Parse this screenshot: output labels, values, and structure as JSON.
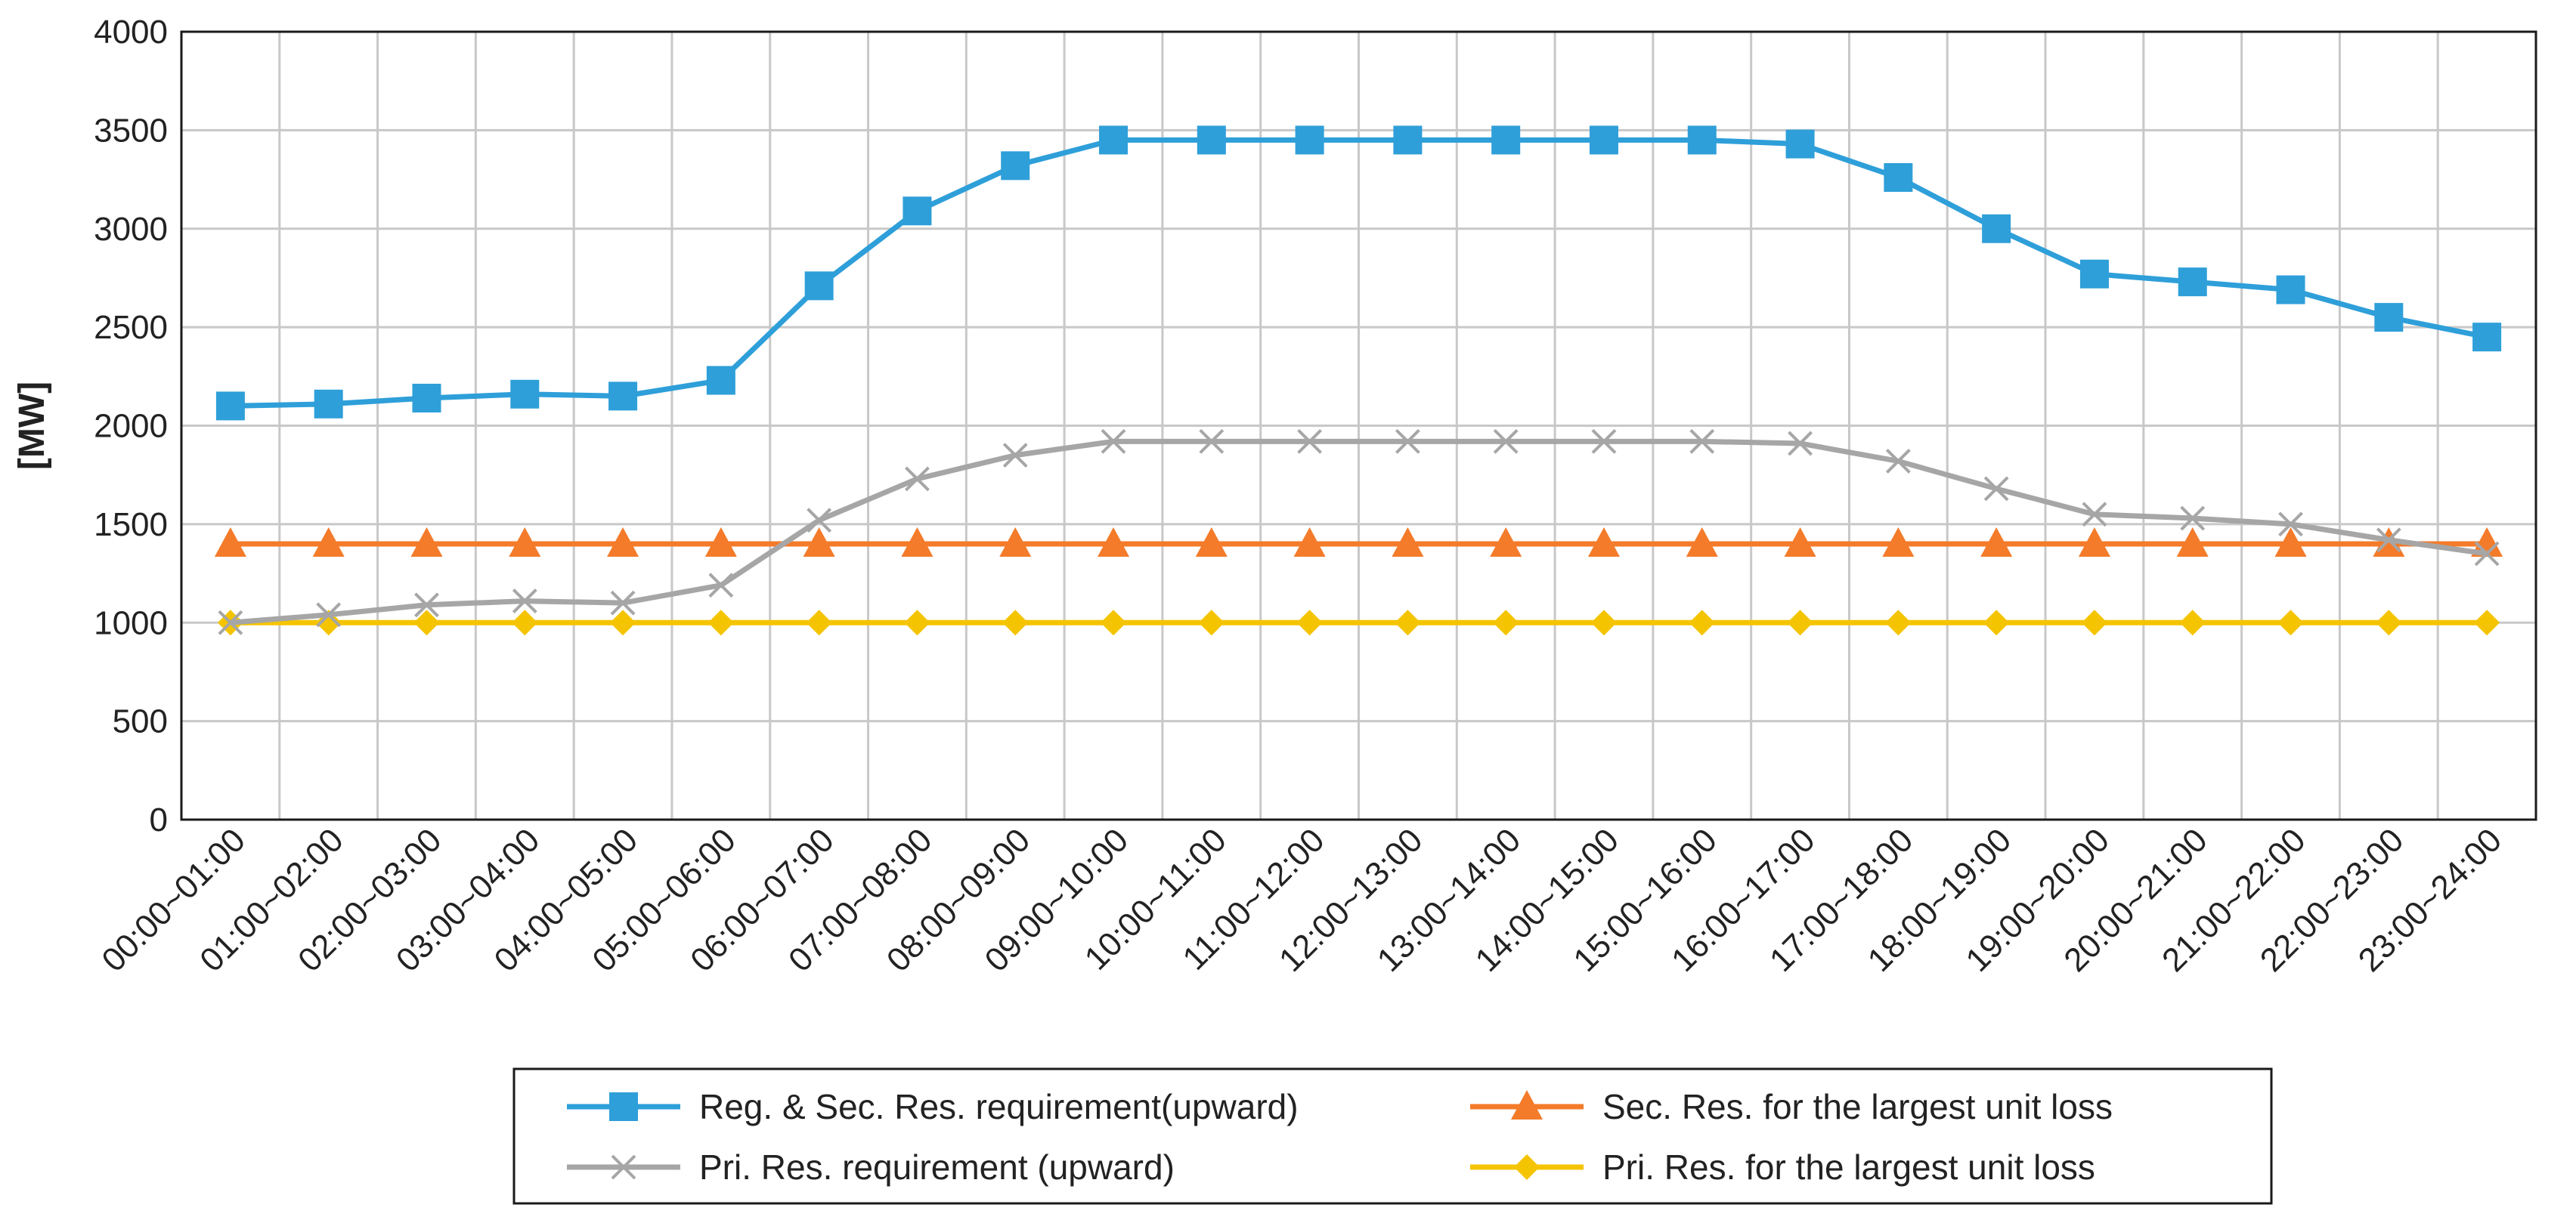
{
  "chart_data": {
    "type": "line",
    "title": "",
    "xlabel": "",
    "ylabel": "[MW]",
    "ylim": [
      0,
      4000
    ],
    "yticks": [
      0,
      500,
      1000,
      1500,
      2000,
      2500,
      3000,
      3500,
      4000
    ],
    "grid": true,
    "legend_position": "bottom",
    "categories": [
      "00:00~01:00",
      "01:00~02:00",
      "02:00~03:00",
      "03:00~04:00",
      "04:00~05:00",
      "05:00~06:00",
      "06:00~07:00",
      "07:00~08:00",
      "08:00~09:00",
      "09:00~10:00",
      "10:00~11:00",
      "11:00~12:00",
      "12:00~13:00",
      "13:00~14:00",
      "14:00~15:00",
      "15:00~16:00",
      "16:00~17:00",
      "17:00~18:00",
      "18:00~19:00",
      "19:00~20:00",
      "20:00~21:00",
      "21:00~22:00",
      "22:00~23:00",
      "23:00~24:00"
    ],
    "series": [
      {
        "name": "Reg. & Sec. Res. requirement(upward)",
        "color": "#2e9fd9",
        "marker": "square",
        "values": [
          2100,
          2110,
          2140,
          2160,
          2150,
          2230,
          2710,
          3090,
          3320,
          3450,
          3450,
          3450,
          3450,
          3450,
          3450,
          3450,
          3430,
          3260,
          3000,
          2770,
          2730,
          2690,
          2550,
          2450
        ]
      },
      {
        "name": "Sec. Res. for the largest unit loss",
        "color": "#f47b2a",
        "marker": "triangle",
        "values": [
          1400,
          1400,
          1400,
          1400,
          1400,
          1400,
          1400,
          1400,
          1400,
          1400,
          1400,
          1400,
          1400,
          1400,
          1400,
          1400,
          1400,
          1400,
          1400,
          1400,
          1400,
          1400,
          1400,
          1400
        ]
      },
      {
        "name": "Pri. Res.  requirement (upward)",
        "color": "#a6a6a6",
        "marker": "x",
        "values": [
          1000,
          1040,
          1090,
          1110,
          1100,
          1190,
          1520,
          1730,
          1850,
          1920,
          1920,
          1920,
          1920,
          1920,
          1920,
          1920,
          1910,
          1820,
          1680,
          1550,
          1530,
          1500,
          1420,
          1350
        ]
      },
      {
        "name": "Pri. Res. for the largest unit loss",
        "color": "#f5c400",
        "marker": "diamond",
        "values": [
          1000,
          1000,
          1000,
          1000,
          1000,
          1000,
          1000,
          1000,
          1000,
          1000,
          1000,
          1000,
          1000,
          1000,
          1000,
          1000,
          1000,
          1000,
          1000,
          1000,
          1000,
          1000,
          1000,
          1000
        ]
      }
    ]
  }
}
